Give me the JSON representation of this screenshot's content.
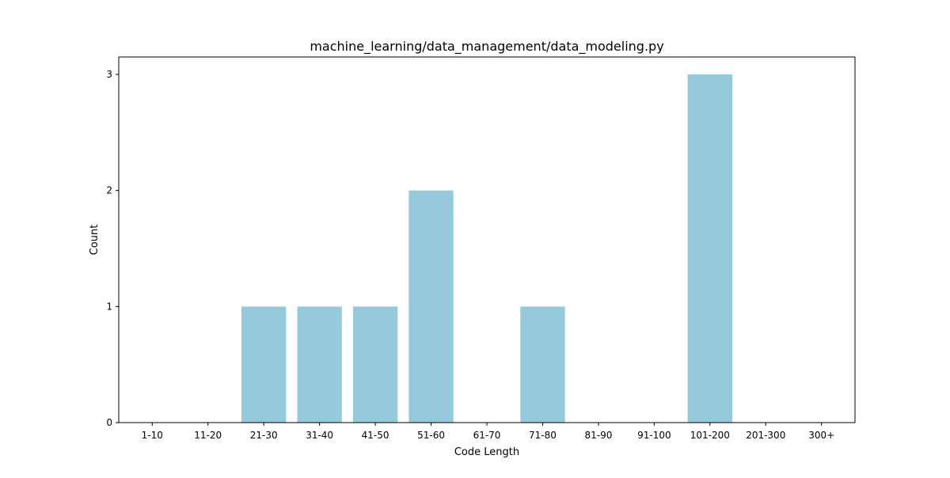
{
  "chart_data": {
    "type": "bar",
    "title": "machine_learning/data_management/data_modeling.py",
    "xlabel": "Code Length",
    "ylabel": "Count",
    "categories": [
      "1-10",
      "11-20",
      "21-30",
      "31-40",
      "41-50",
      "51-60",
      "61-70",
      "71-80",
      "81-90",
      "91-100",
      "101-200",
      "201-300",
      "300+"
    ],
    "values": [
      0,
      0,
      1,
      1,
      1,
      2,
      0,
      1,
      0,
      0,
      3,
      0,
      0
    ],
    "ylim": [
      0,
      3.15
    ],
    "yticks": [
      0,
      1,
      2,
      3
    ],
    "grid": false,
    "bar_color": "#96c9dc"
  }
}
